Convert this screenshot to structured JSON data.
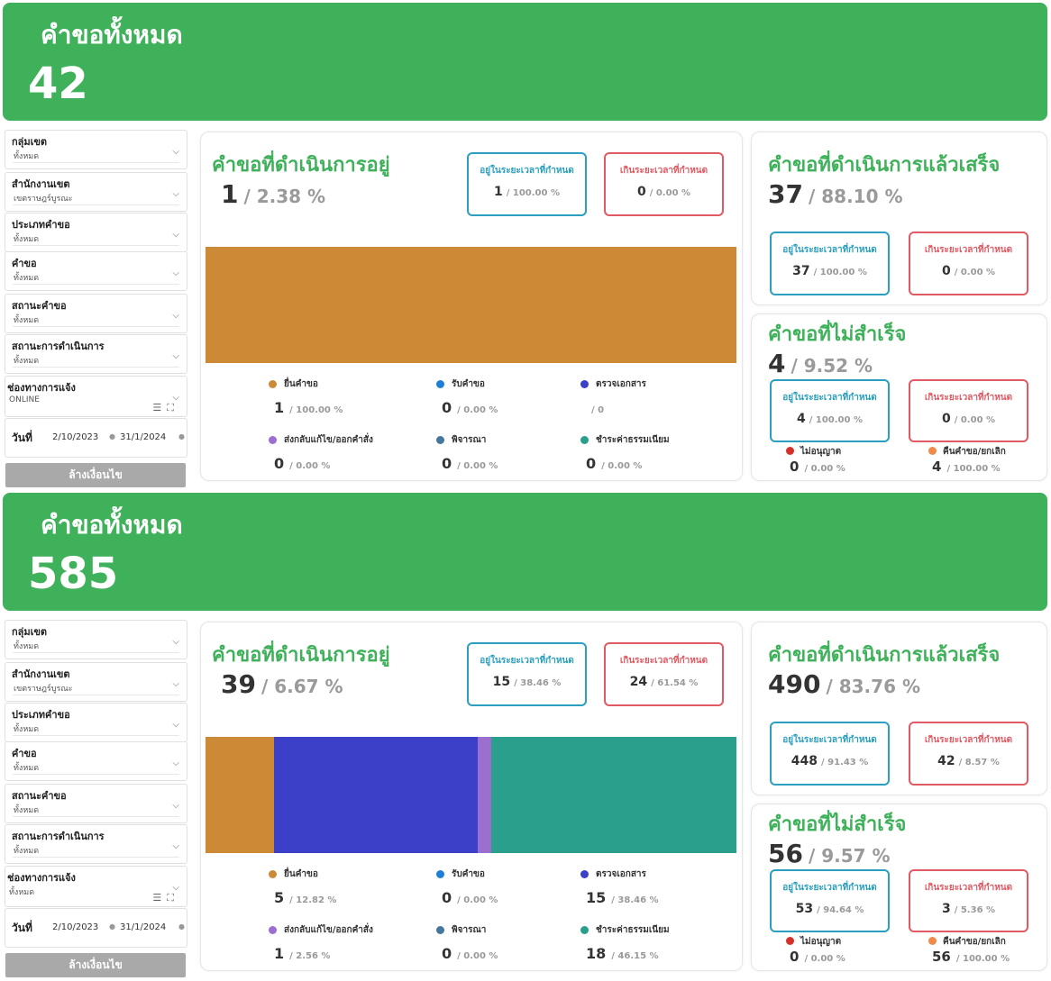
{
  "colors": {
    "banner_green": "#3fb15a",
    "within_time": "#2a9fbf",
    "over_time": "#e05a63",
    "submit": "#cc8a37",
    "receive": "#1f7fd8",
    "verify": "#3c3fc8",
    "return": "#9a6fd0",
    "consider": "#45769e",
    "fee": "#2a9f8c",
    "not_approved": "#d4312d",
    "cancel": "#f08a48"
  },
  "sections": [
    {
      "banner": {
        "title": "คำขอทั้งหมด",
        "value": "42"
      },
      "filters": {
        "items": [
          {
            "label": "กลุ่มเขต",
            "value": "ทั้งหมด"
          },
          {
            "label": "สำนักงานเขต",
            "value": "เขตราษฎร์บูรณะ"
          },
          {
            "label": "ประเภทคำขอ",
            "value": "ทั้งหมด"
          },
          {
            "label": "คำขอ",
            "value": "ทั้งหมด"
          },
          {
            "label": "สถานะคำขอ",
            "value": "ทั้งหมด"
          },
          {
            "label": "สถานะการดำเนินการ",
            "value": "ทั้งหมด"
          }
        ],
        "channel": {
          "label": "ช่องทางการแจ้ง",
          "value": "ONLINE"
        },
        "date": {
          "label": "วันที่",
          "start": "2/10/2023",
          "end": "31/1/2024"
        },
        "clear_label": "ล้างเงื่อนไข"
      },
      "in_progress": {
        "title": "คำขอที่ดำเนินการอยู่",
        "count": "1",
        "percent": "/ 2.38 %",
        "within": {
          "label": "อยู่ในระยะเวลาที่กำหนด",
          "count": "1",
          "percent": "/ 100.00 %"
        },
        "over": {
          "label": "เกินระยะเวลาที่กำหนด",
          "count": "0",
          "percent": "/ 0.00 %"
        },
        "bar_values": [
          1,
          0,
          0,
          0,
          0,
          0
        ],
        "legend": [
          {
            "name": "ยื่นคำขอ",
            "count": "1",
            "percent": "/ 100.00 %"
          },
          {
            "name": "รับคำขอ",
            "count": "0",
            "percent": "/ 0.00 %"
          },
          {
            "name": "ตรวจเอกสาร",
            "count": "",
            "percent": "/ 0"
          },
          {
            "name": "ส่งกลับแก้ไข/ออกคำสั่ง",
            "count": "0",
            "percent": "/ 0.00 %"
          },
          {
            "name": "พิจารณา",
            "count": "0",
            "percent": "/ 0.00 %"
          },
          {
            "name": "ชำระค่าธรรมเนียม",
            "count": "0",
            "percent": "/ 0.00 %"
          }
        ]
      },
      "done": {
        "title": "คำขอที่ดำเนินการแล้วเสร็จ",
        "count": "37",
        "percent": "/ 88.10 %",
        "within": {
          "label": "อยู่ในระยะเวลาที่กำหนด",
          "count": "37",
          "percent": "/ 100.00 %"
        },
        "over": {
          "label": "เกินระยะเวลาที่กำหนด",
          "count": "0",
          "percent": "/ 0.00 %"
        }
      },
      "failed": {
        "title": "คำขอที่ไม่สำเร็จ",
        "count": "4",
        "percent": "/ 9.52 %",
        "within": {
          "label": "อยู่ในระยะเวลาที่กำหนด",
          "count": "4",
          "percent": "/ 100.00 %"
        },
        "over": {
          "label": "เกินระยะเวลาที่กำหนด",
          "count": "0",
          "percent": "/ 0.00 %"
        },
        "not_approved": {
          "name": "ไม่อนุญาต",
          "count": "0",
          "percent": "/ 0.00 %"
        },
        "cancel": {
          "name": "คืนคำขอ/ยกเลิก",
          "count": "4",
          "percent": "/ 100.00 %"
        }
      }
    },
    {
      "banner": {
        "title": "คำขอทั้งหมด",
        "value": "585"
      },
      "filters": {
        "items": [
          {
            "label": "กลุ่มเขต",
            "value": "ทั้งหมด"
          },
          {
            "label": "สำนักงานเขต",
            "value": "เขตราษฎร์บูรณะ"
          },
          {
            "label": "ประเภทคำขอ",
            "value": "ทั้งหมด"
          },
          {
            "label": "คำขอ",
            "value": "ทั้งหมด"
          },
          {
            "label": "สถานะคำขอ",
            "value": "ทั้งหมด"
          },
          {
            "label": "สถานะการดำเนินการ",
            "value": "ทั้งหมด"
          }
        ],
        "channel": {
          "label": "ช่องทางการแจ้ง",
          "value": "ทั้งหมด"
        },
        "date": {
          "label": "วันที่",
          "start": "2/10/2023",
          "end": "31/1/2024"
        },
        "clear_label": "ล้างเงื่อนไข"
      },
      "in_progress": {
        "title": "คำขอที่ดำเนินการอยู่",
        "count": "39",
        "percent": "/ 6.67 %",
        "within": {
          "label": "อยู่ในระยะเวลาที่กำหนด",
          "count": "15",
          "percent": "/ 38.46 %"
        },
        "over": {
          "label": "เกินระยะเวลาที่กำหนด",
          "count": "24",
          "percent": "/ 61.54 %"
        },
        "bar_values": [
          5,
          0,
          15,
          1,
          0,
          18
        ],
        "legend": [
          {
            "name": "ยื่นคำขอ",
            "count": "5",
            "percent": "/ 12.82 %"
          },
          {
            "name": "รับคำขอ",
            "count": "0",
            "percent": "/ 0.00 %"
          },
          {
            "name": "ตรวจเอกสาร",
            "count": "15",
            "percent": "/ 38.46 %"
          },
          {
            "name": "ส่งกลับแก้ไข/ออกคำสั่ง",
            "count": "1",
            "percent": "/ 2.56 %"
          },
          {
            "name": "พิจารณา",
            "count": "0",
            "percent": "/ 0.00 %"
          },
          {
            "name": "ชำระค่าธรรมเนียม",
            "count": "18",
            "percent": "/ 46.15 %"
          }
        ]
      },
      "done": {
        "title": "คำขอที่ดำเนินการแล้วเสร็จ",
        "count": "490",
        "percent": "/ 83.76 %",
        "within": {
          "label": "อยู่ในระยะเวลาที่กำหนด",
          "count": "448",
          "percent": "/ 91.43 %"
        },
        "over": {
          "label": "เกินระยะเวลาที่กำหนด",
          "count": "42",
          "percent": "/ 8.57 %"
        }
      },
      "failed": {
        "title": "คำขอที่ไม่สำเร็จ",
        "count": "56",
        "percent": "/ 9.57 %",
        "within": {
          "label": "อยู่ในระยะเวลาที่กำหนด",
          "count": "53",
          "percent": "/ 94.64 %"
        },
        "over": {
          "label": "เกินระยะเวลาที่กำหนด",
          "count": "3",
          "percent": "/ 5.36 %"
        },
        "not_approved": {
          "name": "ไม่อนุญาต",
          "count": "0",
          "percent": "/ 0.00 %"
        },
        "cancel": {
          "name": "คืนคำขอ/ยกเลิก",
          "count": "56",
          "percent": "/ 100.00 %"
        }
      }
    }
  ]
}
